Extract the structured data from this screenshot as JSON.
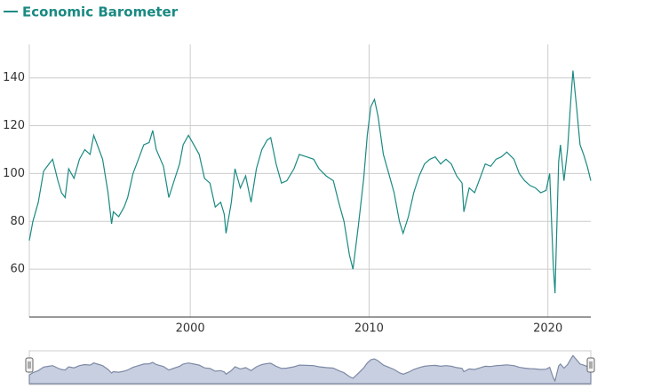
{
  "chart_data": {
    "type": "line",
    "series": [
      {
        "name": "Economic Barometer",
        "color": "#1a8a82",
        "x": [
          1991.0,
          1991.2,
          1991.5,
          1991.8,
          1992.1,
          1992.3,
          1992.6,
          1992.8,
          1993.0,
          1993.2,
          1993.5,
          1993.8,
          1994.1,
          1994.4,
          1994.6,
          1994.9,
          1995.1,
          1995.4,
          1995.6,
          1995.7,
          1996.0,
          1996.3,
          1996.5,
          1996.8,
          1997.1,
          1997.4,
          1997.7,
          1997.9,
          1998.1,
          1998.5,
          1998.8,
          1999.1,
          1999.4,
          1999.6,
          1999.9,
          2000.2,
          2000.5,
          2000.8,
          2001.1,
          2001.4,
          2001.7,
          2001.9,
          2002.0,
          2002.3,
          2002.5,
          2002.8,
          2003.1,
          2003.4,
          2003.7,
          2004.0,
          2004.3,
          2004.5,
          2004.8,
          2005.1,
          2005.4,
          2005.8,
          2006.1,
          2006.5,
          2006.9,
          2007.2,
          2007.6,
          2008.0,
          2008.3,
          2008.6,
          2008.9,
          2009.1,
          2009.4,
          2009.7,
          2009.9,
          2010.1,
          2010.3,
          2010.5,
          2010.8,
          2011.1,
          2011.4,
          2011.7,
          2011.9,
          2012.2,
          2012.5,
          2012.8,
          2013.1,
          2013.4,
          2013.7,
          2014.0,
          2014.3,
          2014.6,
          2014.9,
          2015.2,
          2015.3,
          2015.6,
          2015.9,
          2016.2,
          2016.5,
          2016.8,
          2017.1,
          2017.4,
          2017.7,
          2018.1,
          2018.4,
          2018.7,
          2019.0,
          2019.3,
          2019.6,
          2019.9,
          2020.1,
          2020.3,
          2020.4,
          2020.6,
          2020.7,
          2020.9,
          2021.1,
          2021.3,
          2021.4,
          2021.6,
          2021.8,
          2022.0,
          2022.2,
          2022.4
        ],
        "values": [
          72,
          80,
          88,
          101,
          104,
          106,
          97,
          92,
          90,
          102,
          98,
          106,
          110,
          108,
          116,
          110,
          106,
          92,
          79,
          84,
          82,
          86,
          90,
          100,
          106,
          112,
          113,
          118,
          110,
          103,
          90,
          97,
          104,
          112,
          116,
          112,
          108,
          98,
          96,
          86,
          88,
          83,
          75,
          88,
          102,
          94,
          99,
          88,
          102,
          110,
          114,
          115,
          104,
          96,
          97,
          102,
          108,
          107,
          106,
          102,
          99,
          97,
          88,
          80,
          66,
          60,
          78,
          98,
          116,
          128,
          131,
          124,
          108,
          100,
          92,
          80,
          75,
          82,
          92,
          99,
          104,
          106,
          107,
          104,
          106,
          104,
          99,
          96,
          84,
          94,
          92,
          98,
          104,
          103,
          106,
          107,
          109,
          106,
          100,
          97,
          95,
          94,
          92,
          93,
          100,
          62,
          50,
          105,
          112,
          97,
          110,
          133,
          143,
          128,
          112,
          108,
          103,
          97
        ]
      }
    ],
    "xlim": [
      1991,
      2022.4
    ],
    "xticks": [
      2000,
      2010,
      2020
    ],
    "ylim": [
      40,
      154
    ],
    "yticks": [
      60,
      80,
      100,
      120,
      140
    ],
    "grid": true
  }
}
